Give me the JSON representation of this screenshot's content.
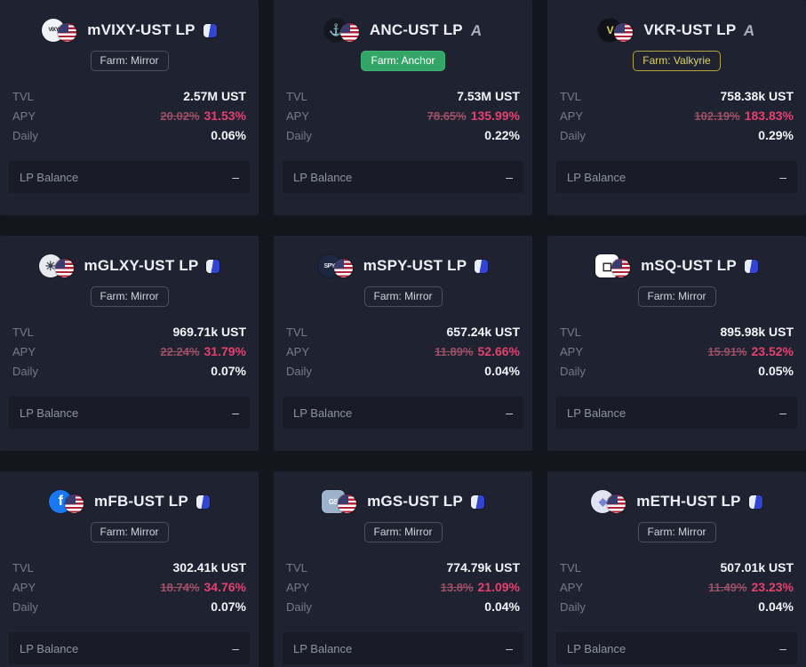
{
  "labels": {
    "tvl": "TVL",
    "apy": "APY",
    "daily": "Daily",
    "lp_balance": "LP Balance"
  },
  "colors": {
    "page_bg": "#14161e",
    "card_bg": "#1f2230",
    "apy_old": "#9c5066",
    "apy_new": "#e5416f",
    "anchor_badge_green": "#33a566",
    "valkyrie_badge_yellow": "#ddd26a",
    "mirror_icon_blue": "#3245d2"
  },
  "cards": [
    {
      "title": "mVIXY-UST LP",
      "farm": "mirror",
      "title_icon": "mirror",
      "farm_badge": "Farm: Mirror",
      "icon": {
        "text": "VIXY",
        "bg": "#f2f3f7",
        "fg": "#23252f",
        "shape": "circle",
        "size": 6
      },
      "tvl": "2.57M UST",
      "apy_old": "20.02%",
      "apy_new": "31.53%",
      "daily": "0.06%",
      "lp_balance": "–"
    },
    {
      "title": "ANC-UST LP",
      "farm": "anchor",
      "title_icon": "a",
      "farm_badge": "Farm: Anchor",
      "icon": {
        "text": "⚓",
        "bg": "#15171e",
        "fg": "#3fd68c",
        "shape": "circle",
        "size": 13
      },
      "tvl": "7.53M UST",
      "apy_old": "78.65%",
      "apy_new": "135.99%",
      "daily": "0.22%",
      "lp_balance": "–"
    },
    {
      "title": "VKR-UST LP",
      "farm": "valkyrie",
      "title_icon": "a",
      "farm_badge": "Farm: Valkyrie",
      "icon": {
        "text": "V",
        "bg": "#101217",
        "fg": "#e7d44b",
        "shape": "circle",
        "size": 12
      },
      "tvl": "758.38k UST",
      "apy_old": "102.19%",
      "apy_new": "183.83%",
      "daily": "0.29%",
      "lp_balance": "–"
    },
    {
      "title": "mGLXY-UST LP",
      "farm": "mirror",
      "title_icon": "mirror",
      "farm_badge": "Farm: Mirror",
      "icon": {
        "text": "☀",
        "bg": "#e8eaf0",
        "fg": "#3a3f4c",
        "shape": "circle",
        "size": 14
      },
      "tvl": "969.71k UST",
      "apy_old": "22.24%",
      "apy_new": "31.79%",
      "daily": "0.07%",
      "lp_balance": "–"
    },
    {
      "title": "mSPY-UST LP",
      "farm": "mirror",
      "title_icon": "mirror",
      "farm_badge": "Farm: Mirror",
      "icon": {
        "text": "SPY",
        "bg": "#1c2740",
        "fg": "#e8ebf2",
        "shape": "circle",
        "size": 7
      },
      "tvl": "657.24k UST",
      "apy_old": "11.89%",
      "apy_new": "52.66%",
      "daily": "0.04%",
      "lp_balance": "–"
    },
    {
      "title": "mSQ-UST LP",
      "farm": "mirror",
      "title_icon": "mirror",
      "farm_badge": "Farm: Mirror",
      "icon": {
        "text": "◻",
        "bg": "#ffffff",
        "fg": "#15171d",
        "shape": "square",
        "size": 14
      },
      "tvl": "895.98k UST",
      "apy_old": "15.91%",
      "apy_new": "23.52%",
      "daily": "0.05%",
      "lp_balance": "–"
    },
    {
      "title": "mFB-UST LP",
      "farm": "mirror",
      "title_icon": "mirror",
      "farm_badge": "Farm: Mirror",
      "icon": {
        "text": "f",
        "bg": "#1877f2",
        "fg": "#ffffff",
        "shape": "circle",
        "size": 16
      },
      "tvl": "302.41k UST",
      "apy_old": "18.74%",
      "apy_new": "34.76%",
      "daily": "0.07%",
      "lp_balance": "–"
    },
    {
      "title": "mGS-UST LP",
      "farm": "mirror",
      "title_icon": "mirror",
      "farm_badge": "Farm: Mirror",
      "icon": {
        "text": "GS",
        "bg": "#9db3cc",
        "fg": "#ffffff",
        "shape": "square",
        "size": 8
      },
      "tvl": "774.79k UST",
      "apy_old": "13.8%",
      "apy_new": "21.09%",
      "daily": "0.04%",
      "lp_balance": "–"
    },
    {
      "title": "mETH-UST LP",
      "farm": "mirror",
      "title_icon": "mirror",
      "farm_badge": "Farm: Mirror",
      "icon": {
        "text": "◆",
        "bg": "#e2e4f2",
        "fg": "#7583d6",
        "shape": "circle",
        "size": 12
      },
      "tvl": "507.01k UST",
      "apy_old": "11.49%",
      "apy_new": "23.23%",
      "daily": "0.04%",
      "lp_balance": "–"
    }
  ]
}
